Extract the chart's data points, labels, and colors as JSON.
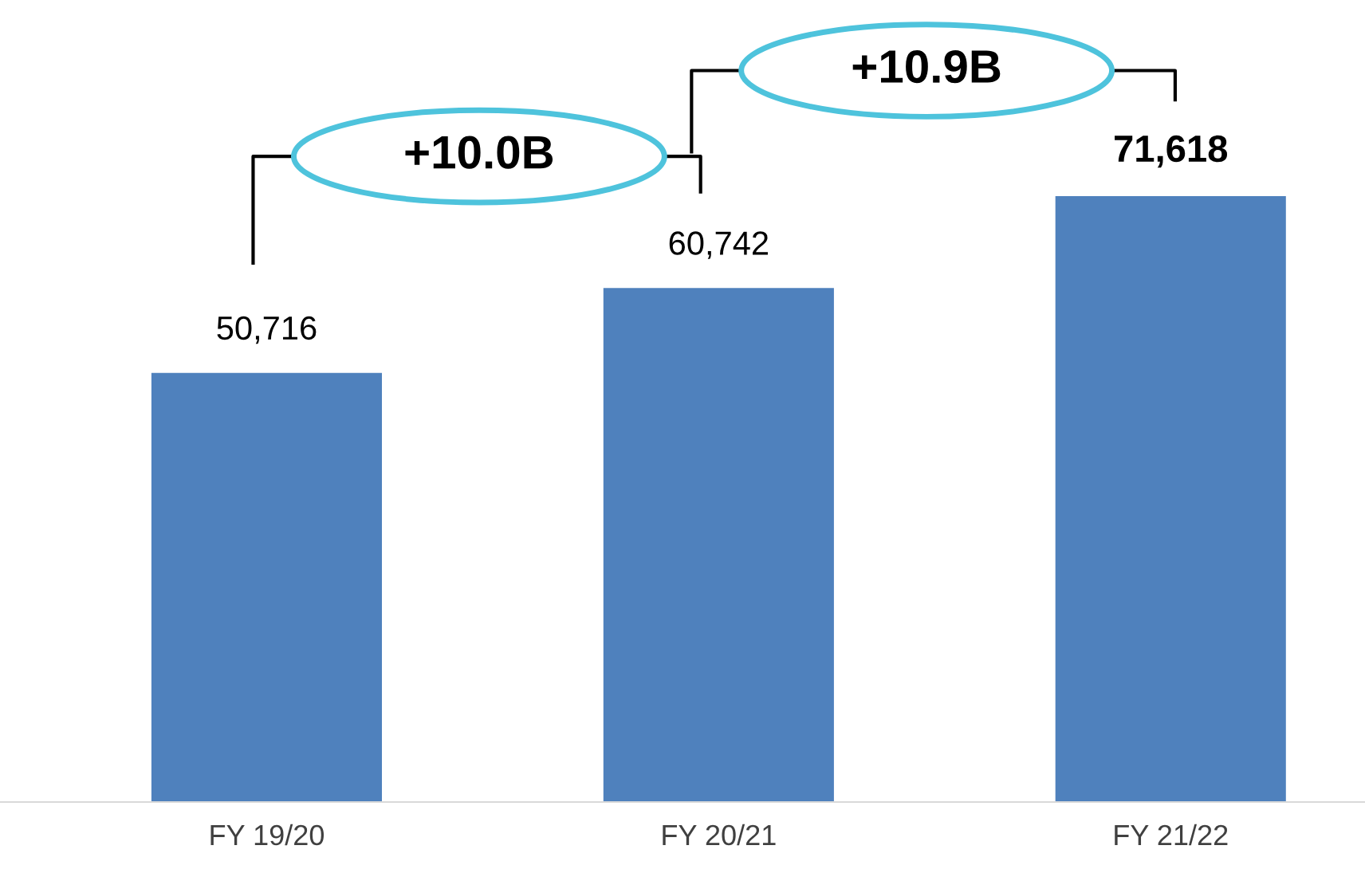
{
  "chart_data": {
    "type": "bar",
    "categories": [
      "FY 19/20",
      "FY 20/21",
      "FY 21/22"
    ],
    "values": [
      50716,
      60742,
      71618
    ],
    "color": "#4f81bd",
    "data_labels": true,
    "value_labels": [
      "50,716",
      "60,742",
      "71,618"
    ],
    "annotations": [
      "+10.0B",
      "+10.9B"
    ],
    "tick_labels": "x",
    "grid": false,
    "legend": false
  }
}
